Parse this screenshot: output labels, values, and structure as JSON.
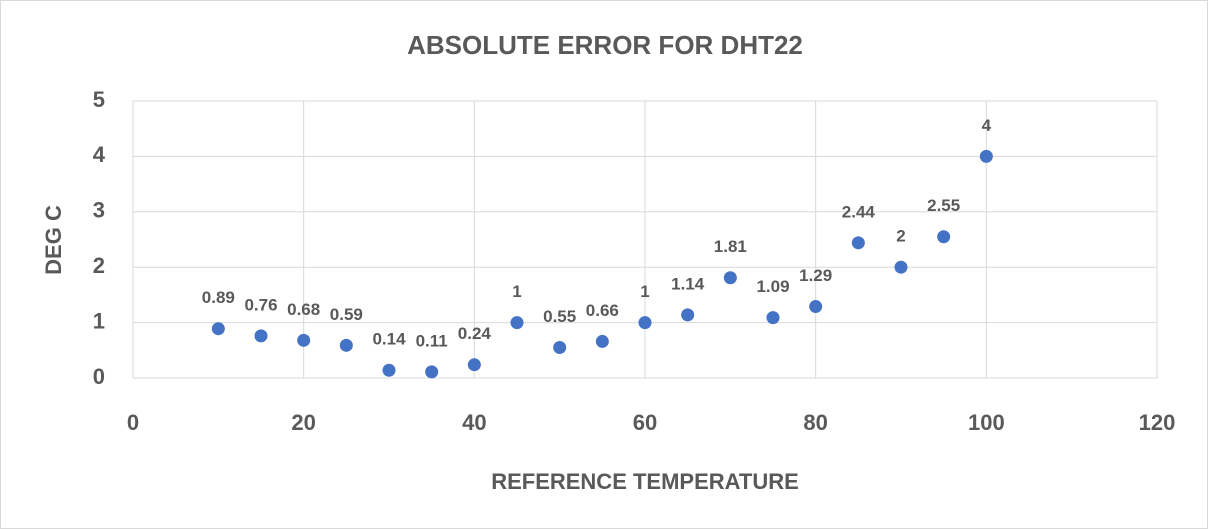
{
  "chart_data": {
    "type": "scatter",
    "title": "ABSOLUTE ERROR FOR DHT22",
    "x_label": "REFERENCE TEMPERATURE",
    "y_label": "DEG C",
    "x": [
      10,
      15,
      20,
      25,
      30,
      35,
      40,
      45,
      50,
      55,
      60,
      65,
      70,
      75,
      80,
      85,
      90,
      95,
      100
    ],
    "values": [
      0.89,
      0.76,
      0.68,
      0.59,
      0.14,
      0.11,
      0.24,
      1,
      0.55,
      0.66,
      1,
      1.14,
      1.81,
      1.09,
      1.29,
      2.44,
      2,
      2.55,
      4
    ],
    "color": "#4472c4",
    "xlim": [
      0,
      120
    ],
    "xticks": [
      0,
      20,
      40,
      60,
      80,
      100,
      120
    ],
    "ylim": [
      0,
      5
    ],
    "yticks": [
      0,
      1,
      2,
      3,
      4,
      5
    ],
    "grid": true
  }
}
